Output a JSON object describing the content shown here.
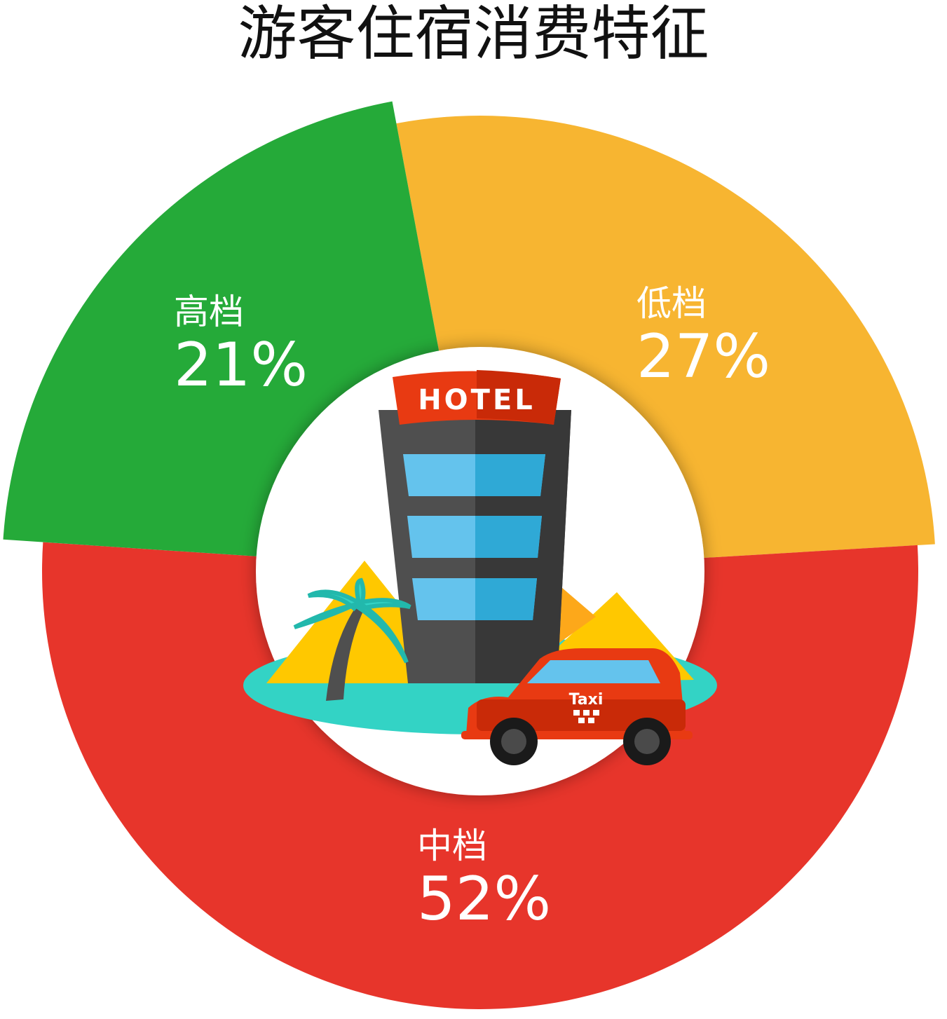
{
  "chart_data": {
    "type": "pie",
    "variant": "donut-variable-radius",
    "title": "游客住宿消费特征",
    "categories": [
      "低档",
      "中档",
      "高档"
    ],
    "values": [
      27,
      52,
      21
    ],
    "labels": [
      "27%",
      "52%",
      "21%"
    ],
    "colors": [
      "#F7B531",
      "#E7352B",
      "#25AA39"
    ],
    "center_icon": "hotel-taxi-palm-illustration",
    "illustration_text": {
      "hotel": "HOTEL",
      "taxi": "Taxi"
    }
  }
}
